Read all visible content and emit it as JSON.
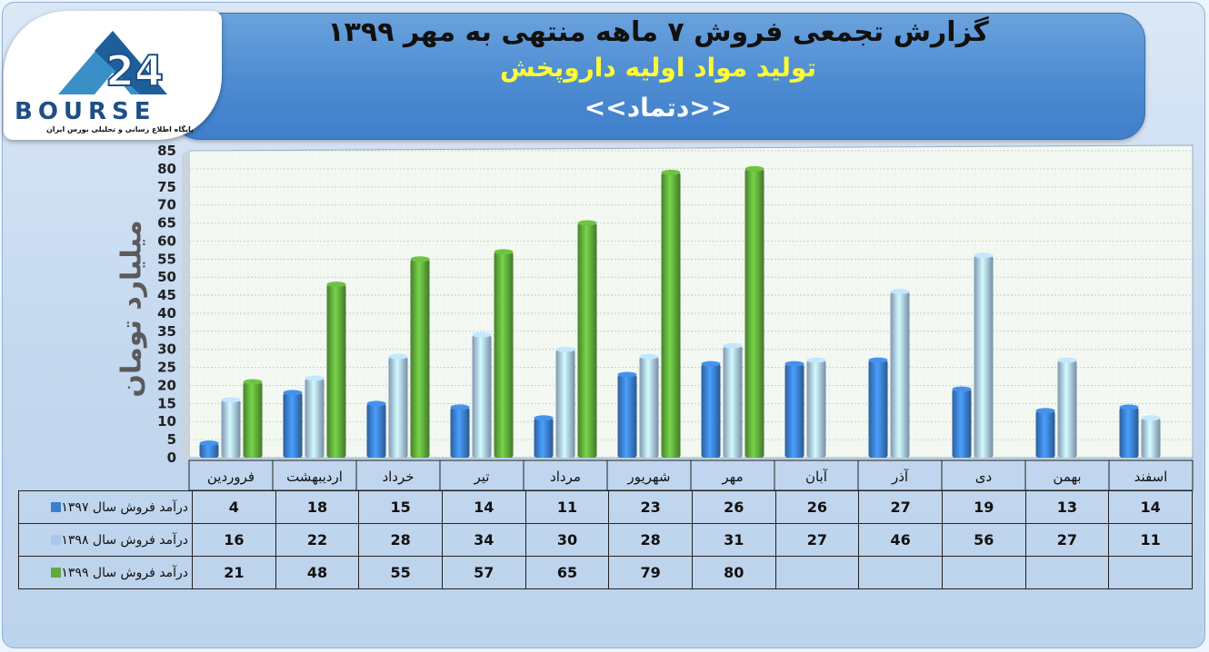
{
  "header": {
    "title_line1": "گزارش تجمعی فروش ۷ ماهه منتهی به مهر ۱۳۹۹",
    "title_line2": "تولید مواد اولیه داروپخش",
    "title_line3": "<<دتماد>>"
  },
  "logo": {
    "text": "BOURSE",
    "subtitle": "پایگاه اطلاع رسانی و تحلیلی بورس ایران"
  },
  "chart_data": {
    "type": "bar",
    "title": "گزارش تجمعی فروش ۷ ماهه منتهی به مهر ۱۳۹۹",
    "ylabel": "میلیارد تومان",
    "ylim": [
      0,
      85
    ],
    "ytick_step": 5,
    "categories": [
      "فروردین",
      "اردیبهشت",
      "خرداد",
      "تیر",
      "مرداد",
      "شهریور",
      "مهر",
      "آبان",
      "آذر",
      "دی",
      "بهمن",
      "اسفند"
    ],
    "series": [
      {
        "name": "درآمد فروش سال ۱۳۹۷",
        "color": "#3b7fcf",
        "values": [
          4,
          18,
          15,
          14,
          11,
          23,
          26,
          26,
          27,
          19,
          13,
          14
        ]
      },
      {
        "name": "درآمد فروش سال ۱۳۹۸",
        "color": "#a9c9ec",
        "values": [
          16,
          22,
          28,
          34,
          30,
          28,
          31,
          27,
          46,
          56,
          27,
          11
        ]
      },
      {
        "name": "درآمد فروش سال ۱۳۹۹",
        "color": "#5faa3a",
        "values": [
          21,
          48,
          55,
          57,
          65,
          79,
          80,
          null,
          null,
          null,
          null,
          null
        ]
      }
    ],
    "grid": true,
    "legend": "table-bottom"
  }
}
